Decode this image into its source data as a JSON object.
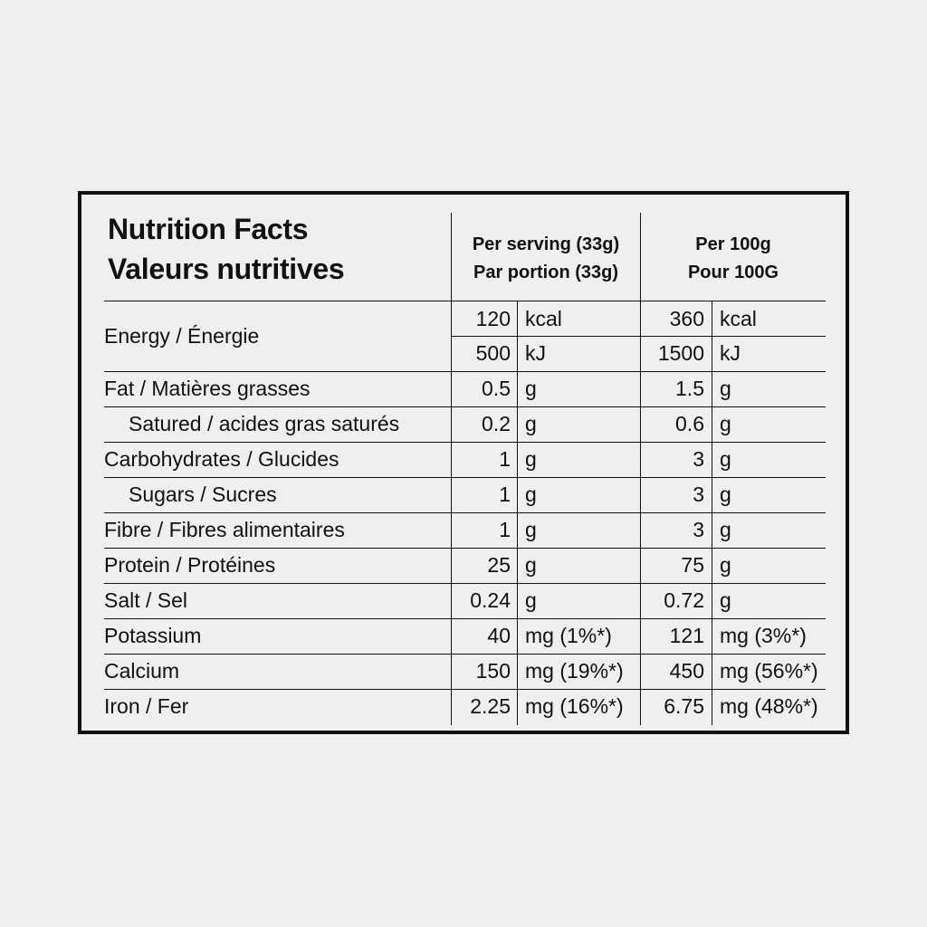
{
  "title": {
    "line1": "Nutrition Facts",
    "line2": "Valeurs nutritives"
  },
  "columns": {
    "serving": {
      "line1": "Per serving (33g)",
      "line2": "Par portion (33g)"
    },
    "per100": {
      "line1": "Per 100g",
      "line2": "Pour 100G"
    }
  },
  "energy": {
    "label": "Energy / Énergie",
    "kcal": {
      "serving": "120",
      "per100": "360",
      "unit": "kcal"
    },
    "kj": {
      "serving": "500",
      "per100": "1500",
      "unit": "kJ"
    }
  },
  "rows": [
    {
      "label": "Fat / Matières grasses",
      "sub": false,
      "serving": "0.5",
      "serving_unit": "g",
      "per100": "1.5",
      "per100_unit": "g"
    },
    {
      "label": "Satured / acides gras saturés",
      "sub": true,
      "serving": "0.2",
      "serving_unit": "g",
      "per100": "0.6",
      "per100_unit": "g"
    },
    {
      "label": "Carbohydrates / Glucides",
      "sub": false,
      "serving": "1",
      "serving_unit": "g",
      "per100": "3",
      "per100_unit": "g"
    },
    {
      "label": "Sugars / Sucres",
      "sub": true,
      "serving": "1",
      "serving_unit": "g",
      "per100": "3",
      "per100_unit": "g"
    },
    {
      "label": "Fibre / Fibres alimentaires",
      "sub": false,
      "serving": "1",
      "serving_unit": "g",
      "per100": "3",
      "per100_unit": "g"
    },
    {
      "label": "Protein / Protéines",
      "sub": false,
      "serving": "25",
      "serving_unit": "g",
      "per100": "75",
      "per100_unit": "g"
    },
    {
      "label": "Salt / Sel",
      "sub": false,
      "serving": "0.24",
      "serving_unit": "g",
      "per100": "0.72",
      "per100_unit": "g"
    },
    {
      "label": "Potassium",
      "sub": false,
      "serving": "40",
      "serving_unit": "mg (1%*)",
      "per100": "121",
      "per100_unit": "mg (3%*)"
    },
    {
      "label": "Calcium",
      "sub": false,
      "serving": "150",
      "serving_unit": "mg (19%*)",
      "per100": "450",
      "per100_unit": "mg (56%*)"
    },
    {
      "label": "Iron / Fer",
      "sub": false,
      "serving": "2.25",
      "serving_unit": "mg (16%*)",
      "per100": "6.75",
      "per100_unit": "mg (48%*)"
    }
  ]
}
